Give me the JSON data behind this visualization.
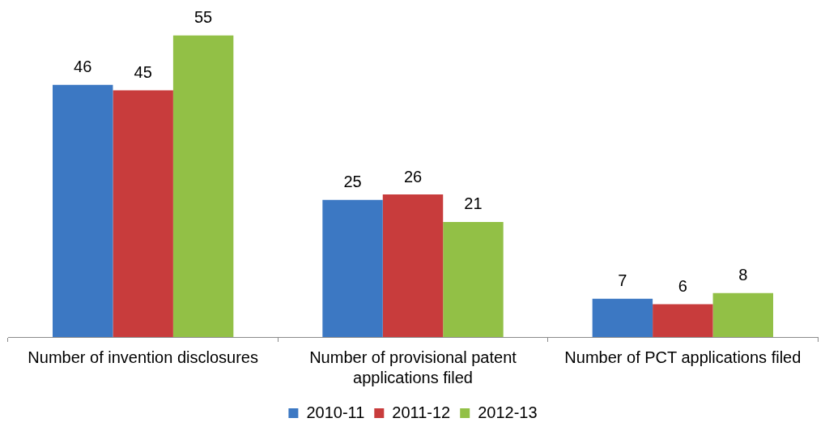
{
  "chart_data": {
    "type": "bar",
    "categories": [
      "Number of invention disclosures",
      "Number of provisional patent applications filed",
      "Number of PCT applications filed"
    ],
    "series": [
      {
        "name": "2010-11",
        "color": "#3c78c3",
        "values": [
          46,
          25,
          7
        ]
      },
      {
        "name": "2011-12",
        "color": "#c83c3c",
        "values": [
          45,
          26,
          6
        ]
      },
      {
        "name": "2012-13",
        "color": "#92c046",
        "values": [
          55,
          21,
          8
        ]
      }
    ],
    "data_labels": true,
    "legend": "bottom",
    "tick_labels": "x"
  }
}
